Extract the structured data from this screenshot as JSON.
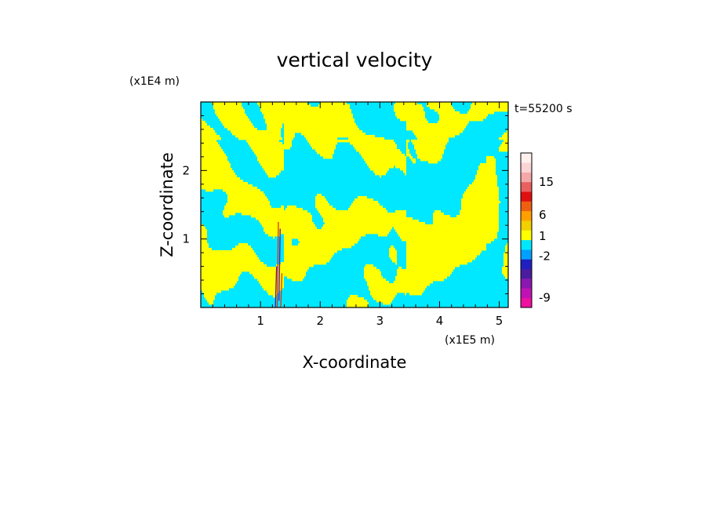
{
  "chart_data": {
    "type": "heatmap",
    "title": "vertical velocity",
    "xlabel": "X-coordinate",
    "ylabel": "Z-coordinate",
    "x_unit": "(x1E5 m)",
    "y_unit": "(x1E4 m)",
    "time_label": "t=55200 s",
    "xlim": [
      0,
      5.15
    ],
    "ylim": [
      0,
      3.0
    ],
    "x_ticks": [
      1,
      2,
      3,
      4,
      5
    ],
    "y_ticks": [
      1,
      2
    ],
    "x_minor_step": 0.2,
    "y_minor_step": 0.2,
    "colors": {
      "positive": "#ffff00",
      "negative": "#00e8ff",
      "strong_positive": "#e03010",
      "strong_negative": "#5018a8"
    },
    "colorbar": {
      "levels": [
        {
          "color": "#ee10a0"
        },
        {
          "color": "#c012b4"
        },
        {
          "color": "#8a18b0"
        },
        {
          "color": "#4a1ca0"
        },
        {
          "color": "#2020c0"
        },
        {
          "color": "#00a0ff"
        },
        {
          "color": "#00e8ff"
        },
        {
          "color": "#ffff00"
        },
        {
          "color": "#f0d000"
        },
        {
          "color": "#ffa000"
        },
        {
          "color": "#ee6010"
        },
        {
          "color": "#e01010"
        },
        {
          "color": "#e86060"
        },
        {
          "color": "#f4a8a8"
        },
        {
          "color": "#fbd4d4"
        },
        {
          "color": "#fff0ee"
        }
      ],
      "labels": [
        {
          "text": "-9",
          "level": 1
        },
        {
          "text": "-2",
          "level": 5.3
        },
        {
          "text": "1",
          "level": 7.4
        },
        {
          "text": "6",
          "level": 9.6
        },
        {
          "text": "15",
          "level": 13
        }
      ]
    }
  }
}
